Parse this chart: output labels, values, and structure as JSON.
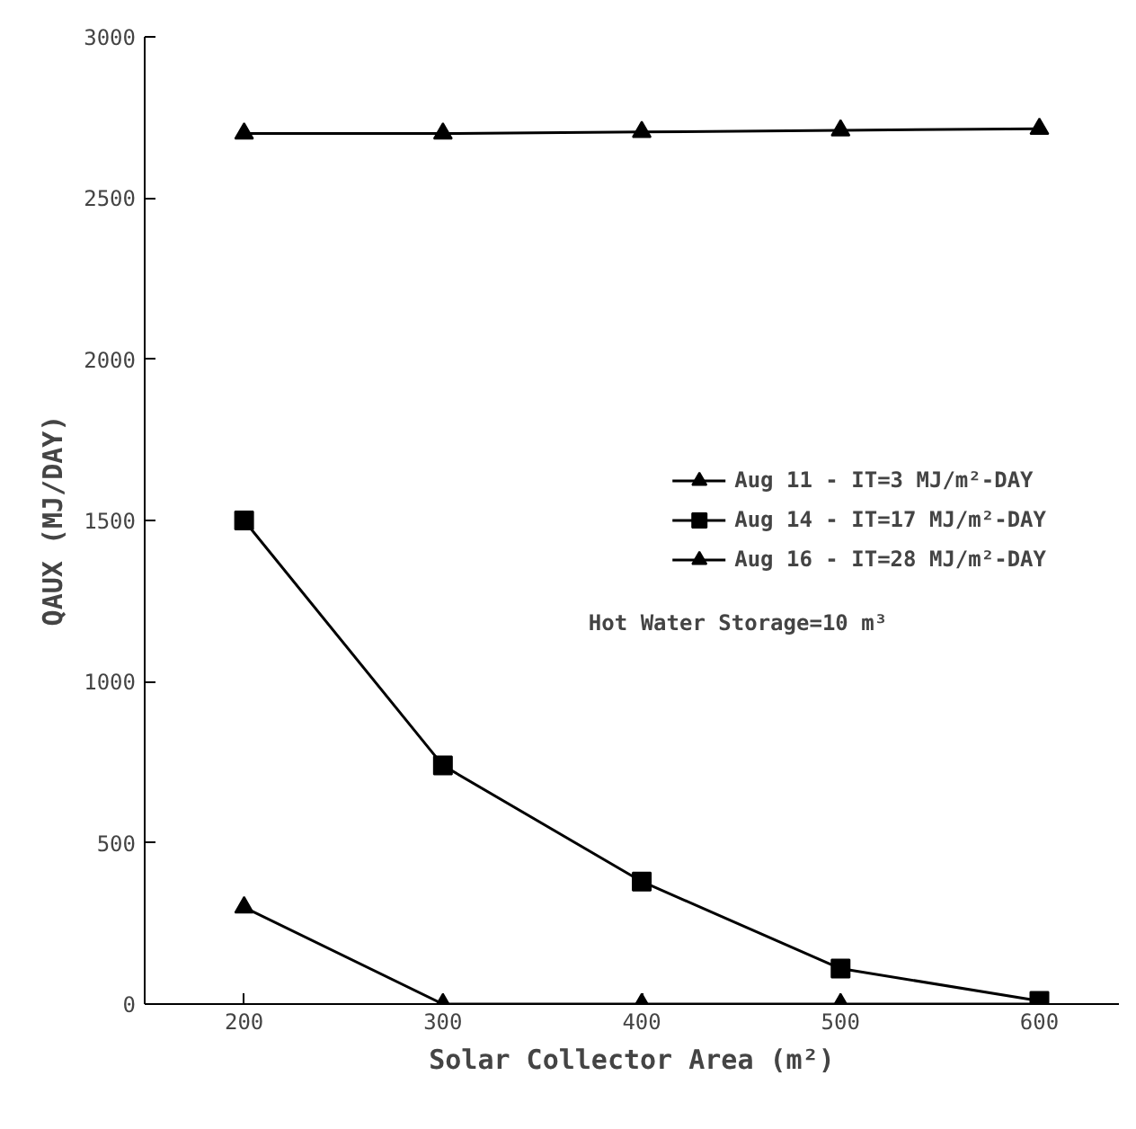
{
  "chart_data": {
    "type": "line",
    "xlabel": "Solar Collector Area (m²)",
    "ylabel": "QAUX (MJ/DAY)",
    "x": [
      200,
      300,
      400,
      500,
      600
    ],
    "series": [
      {
        "name": "Aug 11 - IT=3 MJ/m²-DAY",
        "color": "#000000",
        "marker": "triangle",
        "values": [
          2700,
          2700,
          2705,
          2710,
          2715
        ]
      },
      {
        "name": "Aug 14 - IT=17 MJ/m²-DAY",
        "color": "#000000",
        "marker": "square",
        "values": [
          1500,
          740,
          380,
          110,
          10
        ]
      },
      {
        "name": "Aug 16 - IT=28 MJ/m²-DAY",
        "color": "#000000",
        "marker": "triangle",
        "values": [
          300,
          0,
          0,
          0,
          0
        ]
      }
    ],
    "annotations": [
      "Hot Water Storage=10 m³"
    ],
    "xlim": [
      150,
      640
    ],
    "ylim": [
      0,
      3000
    ],
    "xticks": [
      200,
      300,
      400,
      500,
      600
    ],
    "yticks": [
      0,
      500,
      1000,
      1500,
      2000,
      2500,
      3000
    ],
    "legend": "center right",
    "grid": false,
    "line_style": "solid"
  }
}
